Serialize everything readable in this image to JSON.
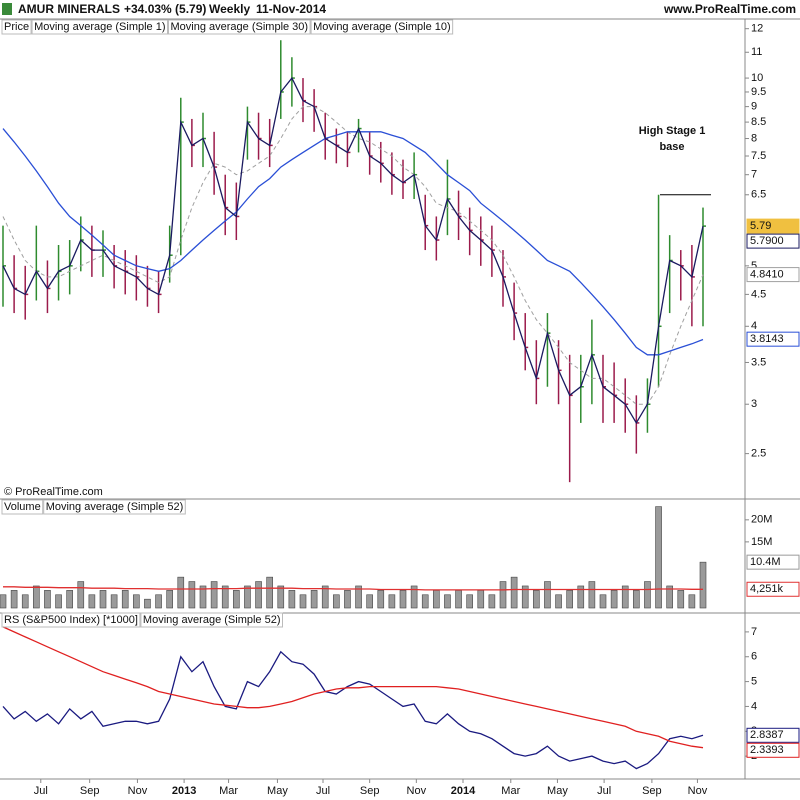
{
  "header": {
    "symbol": "AMUR MINERALS",
    "change": "+34.03% (5.79)",
    "period": "Weekly",
    "date": "11-Nov-2014",
    "site": "www.ProRealTime.com"
  },
  "chart_data": [
    {
      "type": "price",
      "price_label": "Price",
      "log_scale": true,
      "up_color": "#2e8b2e",
      "down_color": "#9b1b4b",
      "ylim": [
        2.13,
        12.3
      ],
      "yticks": [
        12,
        11,
        10,
        9.5,
        9,
        8.5,
        8,
        7.5,
        7,
        6.5,
        5,
        4.5,
        4,
        3.5,
        3,
        2.5
      ],
      "high": [
        5.8,
        5.2,
        5.0,
        5.8,
        5.1,
        5.4,
        5.5,
        6.0,
        5.8,
        5.7,
        5.4,
        5.3,
        5.2,
        5.0,
        4.9,
        5.8,
        9.3,
        8.6,
        8.8,
        8.2,
        7.0,
        6.8,
        9.0,
        8.8,
        8.6,
        11.5,
        10.8,
        10.0,
        9.6,
        8.8,
        8.3,
        8.2,
        8.6,
        8.2,
        7.9,
        7.6,
        7.4,
        7.6,
        6.5,
        6.0,
        7.4,
        6.6,
        6.2,
        6.0,
        5.8,
        5.3,
        4.7,
        4.2,
        3.8,
        4.2,
        3.8,
        3.6,
        3.6,
        4.1,
        3.6,
        3.5,
        3.3,
        3.1,
        3.3,
        6.5,
        5.6,
        5.3,
        5.4,
        6.2
      ],
      "low": [
        4.3,
        4.2,
        4.1,
        4.4,
        4.2,
        4.4,
        4.5,
        4.9,
        4.8,
        4.8,
        4.6,
        4.5,
        4.4,
        4.3,
        4.2,
        4.7,
        5.2,
        7.2,
        7.2,
        6.5,
        5.6,
        5.5,
        7.4,
        7.4,
        7.2,
        8.6,
        9.0,
        8.5,
        8.2,
        7.4,
        7.3,
        7.2,
        7.6,
        7.0,
        6.8,
        6.5,
        6.4,
        6.4,
        5.3,
        5.1,
        5.6,
        5.5,
        5.2,
        5.0,
        4.8,
        4.3,
        3.8,
        3.4,
        3.0,
        3.2,
        3.0,
        2.25,
        2.8,
        3.0,
        2.8,
        2.8,
        2.7,
        2.5,
        2.7,
        3.2,
        4.2,
        4.4,
        4.0,
        4.0
      ],
      "series": [
        {
          "name": "Moving average (Simple 1)",
          "color": "#1a1a60",
          "values": [
            5.0,
            4.6,
            4.5,
            4.9,
            4.6,
            4.9,
            5.0,
            5.5,
            5.3,
            5.3,
            5.0,
            4.9,
            4.8,
            4.6,
            4.5,
            5.2,
            8.5,
            7.8,
            8.0,
            7.2,
            6.2,
            6.0,
            8.5,
            8.0,
            7.8,
            9.5,
            10.0,
            9.2,
            9.0,
            8.0,
            7.8,
            7.6,
            8.3,
            7.5,
            7.3,
            7.0,
            6.8,
            7.0,
            5.8,
            5.5,
            6.4,
            6.0,
            5.7,
            5.5,
            5.3,
            4.8,
            4.2,
            3.7,
            3.3,
            3.9,
            3.4,
            3.1,
            3.2,
            3.6,
            3.2,
            3.1,
            3.0,
            2.8,
            3.0,
            4.0,
            5.1,
            5.0,
            4.8,
            5.79
          ]
        },
        {
          "name": "Moving average (Simple 30)",
          "color": "#2a4fd6",
          "values": [
            8.3,
            7.9,
            7.5,
            7.1,
            6.7,
            6.3,
            6.0,
            5.8,
            5.6,
            5.4,
            5.2,
            5.1,
            5.0,
            4.95,
            4.9,
            4.95,
            5.1,
            5.3,
            5.5,
            5.7,
            5.9,
            6.1,
            6.4,
            6.7,
            6.9,
            7.2,
            7.4,
            7.6,
            7.8,
            8.0,
            8.1,
            8.2,
            8.2,
            8.2,
            8.2,
            8.1,
            8.0,
            7.8,
            7.6,
            7.3,
            7.0,
            6.8,
            6.6,
            6.3,
            6.1,
            5.9,
            5.7,
            5.5,
            5.3,
            5.1,
            5.0,
            4.9,
            4.7,
            4.5,
            4.3,
            4.1,
            3.9,
            3.7,
            3.6,
            3.6,
            3.65,
            3.7,
            3.75,
            3.81
          ]
        },
        {
          "name": "Moving average (Simple 10)",
          "color": "#a0a0a0",
          "dashed": true,
          "values": [
            6.0,
            5.5,
            5.1,
            4.9,
            4.8,
            4.8,
            4.9,
            5.0,
            5.1,
            5.2,
            5.1,
            5.0,
            4.9,
            4.8,
            4.7,
            4.8,
            5.5,
            6.2,
            6.8,
            7.3,
            7.2,
            7.0,
            7.1,
            7.3,
            7.5,
            8.0,
            8.6,
            9.0,
            9.0,
            8.8,
            8.5,
            8.2,
            8.0,
            7.9,
            7.7,
            7.5,
            7.2,
            7.0,
            6.7,
            6.3,
            6.2,
            6.1,
            5.9,
            5.7,
            5.5,
            5.2,
            4.8,
            4.4,
            4.1,
            3.9,
            3.7,
            3.5,
            3.4,
            3.3,
            3.3,
            3.2,
            3.1,
            3.0,
            3.0,
            3.2,
            3.6,
            4.0,
            4.4,
            4.84
          ]
        }
      ],
      "annotation": {
        "text": [
          "High Stage 1",
          "base"
        ],
        "level": 6.5
      },
      "copyright": "© ProRealTime.com",
      "tags": [
        {
          "label": "5.79",
          "value": 5.79,
          "color": "#f0c040",
          "filled": true
        },
        {
          "label": "5.7900",
          "value": 5.79,
          "color": "#1a1a60"
        },
        {
          "label": "4.8410",
          "value": 4.841,
          "color": "#a0a0a0"
        },
        {
          "label": "3.8143",
          "value": 3.8143,
          "color": "#2a4fd6"
        }
      ]
    },
    {
      "type": "volume",
      "label": "Volume",
      "color": "#9a9a9a",
      "values": [
        3,
        4,
        3,
        5,
        4,
        3,
        4,
        6,
        3,
        4,
        3,
        4,
        3,
        2,
        3,
        4,
        7,
        6,
        5,
        6,
        5,
        4,
        5,
        6,
        7,
        5,
        4,
        3,
        4,
        5,
        3,
        4,
        5,
        3,
        4,
        3,
        4,
        5,
        3,
        4,
        3,
        4,
        3,
        4,
        3,
        6,
        7,
        5,
        4,
        6,
        3,
        4,
        5,
        6,
        3,
        4,
        5,
        4,
        6,
        23,
        5,
        4,
        3,
        10.4
      ],
      "series": [
        {
          "name": "Moving average (Simple 52)",
          "color": "#e03030",
          "values": [
            4.8,
            4.8,
            4.7,
            4.7,
            4.7,
            4.6,
            4.6,
            4.6,
            4.5,
            4.5,
            4.5,
            4.4,
            4.4,
            4.4,
            4.3,
            4.3,
            4.3,
            4.3,
            4.3,
            4.4,
            4.4,
            4.4,
            4.5,
            4.5,
            4.5,
            4.5,
            4.5,
            4.4,
            4.4,
            4.4,
            4.3,
            4.3,
            4.3,
            4.3,
            4.2,
            4.2,
            4.2,
            4.2,
            4.1,
            4.1,
            4.1,
            4.1,
            4.1,
            4.1,
            4.1,
            4.1,
            4.2,
            4.2,
            4.2,
            4.2,
            4.2,
            4.2,
            4.2,
            4.2,
            4.2,
            4.2,
            4.2,
            4.2,
            4.2,
            4.3,
            4.3,
            4.3,
            4.25,
            4.25
          ]
        }
      ],
      "ylim": [
        0,
        24.5
      ],
      "yticks": [
        {
          "value": 20,
          "label": "20M"
        },
        {
          "value": 15,
          "label": "15M"
        }
      ],
      "tags": [
        {
          "label": "10.4M",
          "value": 10.4,
          "color": "#9a9a9a"
        },
        {
          "label": "4,251k",
          "value": 4.251,
          "color": "#e03030"
        }
      ]
    },
    {
      "type": "line",
      "series": [
        {
          "name": "RS (S&P500 Index) [*1000]",
          "color": "#1a1a80",
          "values": [
            4.0,
            3.5,
            3.8,
            3.4,
            3.7,
            3.3,
            3.9,
            3.5,
            3.8,
            3.2,
            3.3,
            3.4,
            3.4,
            3.3,
            3.4,
            4.3,
            6.0,
            5.4,
            5.8,
            4.8,
            4.0,
            3.9,
            5.0,
            4.8,
            5.4,
            6.2,
            5.8,
            5.7,
            5.3,
            4.6,
            4.5,
            4.8,
            5.0,
            4.9,
            4.6,
            4.3,
            4.0,
            4.1,
            3.4,
            3.3,
            3.7,
            3.3,
            3.0,
            2.9,
            2.7,
            2.4,
            2.1,
            2.0,
            2.1,
            2.4,
            2.0,
            1.8,
            1.9,
            2.0,
            1.8,
            1.7,
            1.8,
            1.5,
            1.7,
            2.1,
            2.7,
            2.8,
            2.7,
            2.84
          ]
        },
        {
          "name": "Moving average (Simple 52)",
          "color": "#e02020",
          "values": [
            7.2,
            7.0,
            6.8,
            6.6,
            6.4,
            6.2,
            6.0,
            5.8,
            5.6,
            5.4,
            5.25,
            5.1,
            4.95,
            4.8,
            4.6,
            4.5,
            4.4,
            4.3,
            4.2,
            4.1,
            4.05,
            4.0,
            3.95,
            3.95,
            4.0,
            4.1,
            4.2,
            4.35,
            4.5,
            4.6,
            4.7,
            4.75,
            4.75,
            4.8,
            4.8,
            4.8,
            4.8,
            4.8,
            4.8,
            4.8,
            4.75,
            4.7,
            4.6,
            4.5,
            4.4,
            4.3,
            4.2,
            4.1,
            4.0,
            3.9,
            3.8,
            3.7,
            3.6,
            3.5,
            3.4,
            3.3,
            3.2,
            3.0,
            2.9,
            2.8,
            2.6,
            2.5,
            2.4,
            2.34
          ]
        }
      ],
      "ylim": [
        1.12,
        7.68
      ],
      "yticks": [
        7,
        6,
        5,
        4,
        3,
        2
      ],
      "tags": [
        {
          "label": "2.8387",
          "value": 2.8387,
          "color": "#1a1a80"
        },
        {
          "label": "2.3393",
          "value": 2.3393,
          "color": "#e02020"
        }
      ],
      "xticks": [
        {
          "value": 3.4,
          "label": "Jul"
        },
        {
          "value": 7.8,
          "label": "Sep"
        },
        {
          "value": 12.1,
          "label": "Nov"
        },
        {
          "value": 16.3,
          "label": "2013"
        },
        {
          "value": 20.3,
          "label": "Mar"
        },
        {
          "value": 24.7,
          "label": "May"
        },
        {
          "value": 28.8,
          "label": "Jul"
        },
        {
          "value": 33.0,
          "label": "Sep"
        },
        {
          "value": 37.2,
          "label": "Nov"
        },
        {
          "value": 41.4,
          "label": "2014"
        },
        {
          "value": 45.7,
          "label": "Mar"
        },
        {
          "value": 49.9,
          "label": "May"
        },
        {
          "value": 54.1,
          "label": "Jul"
        },
        {
          "value": 58.4,
          "label": "Sep"
        },
        {
          "value": 62.5,
          "label": "Nov"
        }
      ]
    }
  ]
}
